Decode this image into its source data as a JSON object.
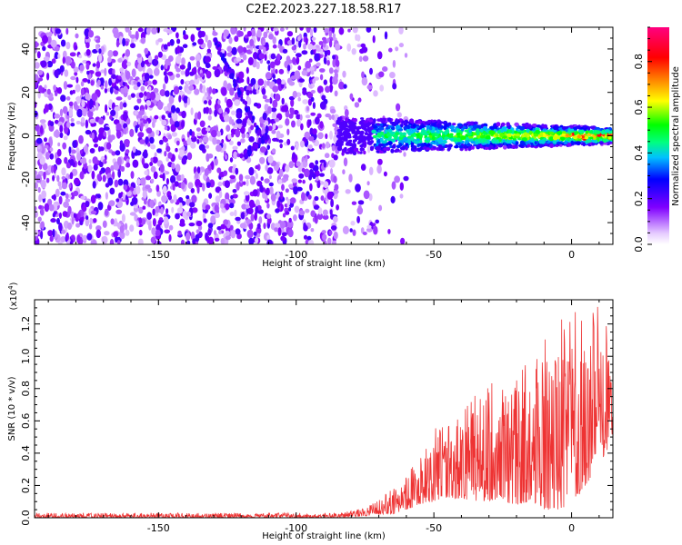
{
  "page_title": "C2E2.2023.227.18.58.R17",
  "chart_data": [
    {
      "type": "heatmap",
      "xlabel": "Height of straight line (km)",
      "ylabel": "Frequency (Hz)",
      "xlim": [
        -195,
        15
      ],
      "ylim": [
        -50,
        50
      ],
      "xticks": [
        -150,
        -100,
        -50,
        0
      ],
      "yticks": [
        -40,
        -20,
        0,
        20,
        40
      ],
      "colorbar": {
        "label": "Normalized spectral amplitude",
        "range": [
          0.0,
          0.95
        ],
        "ticks": [
          0.0,
          0.2,
          0.4,
          0.6,
          0.8
        ],
        "colormap": [
          "#ffffff",
          "#e6ccff",
          "#8000ff",
          "#0000ff",
          "#00c0ff",
          "#00ff80",
          "#00ff00",
          "#ffff00",
          "#ff8000",
          "#ff0000",
          "#ff0080"
        ]
      },
      "signal_band": {
        "x_start": -85,
        "x_end": 15,
        "center_hz": 0,
        "half_width_hz": 6
      },
      "noise_region": {
        "x_start": -195,
        "x_end": -70,
        "max_amplitude": 0.25
      },
      "diagonal_streaks": [
        {
          "x0": -130,
          "y0": 45,
          "x1": -113,
          "y1": 0
        },
        {
          "x0": -120,
          "y0": -10,
          "x1": -110,
          "y1": 0
        }
      ]
    },
    {
      "type": "line",
      "xlabel": "Height of straight line (km)",
      "ylabel": "SNR (10 * v/v)",
      "yscale_label": "(x10",
      "yscale_exp": "4",
      "yscale_close": ")",
      "xlim": [
        -195,
        15
      ],
      "ylim": [
        0.0,
        1.35
      ],
      "xticks": [
        -150,
        -100,
        -50,
        0
      ],
      "yticks": [
        0.0,
        0.2,
        0.4,
        0.6,
        0.8,
        1.0,
        1.2
      ],
      "series": [
        {
          "color": "#ee3333",
          "envelope_x": [
            -195,
            -85,
            -75,
            -70,
            -65,
            -60,
            -55,
            -50,
            -45,
            -40,
            -35,
            -30,
            -25,
            -20,
            -15,
            -10,
            -5,
            0,
            5,
            10,
            15
          ],
          "envelope_max": [
            0.03,
            0.03,
            0.06,
            0.12,
            0.18,
            0.28,
            0.38,
            0.55,
            0.58,
            0.65,
            0.78,
            0.85,
            0.82,
            0.85,
            1.05,
            1.1,
            1.3,
            1.35,
            1.35,
            1.3,
            1.15
          ],
          "envelope_min": [
            0.0,
            0.0,
            0.01,
            0.02,
            0.02,
            0.05,
            0.08,
            0.1,
            0.12,
            0.12,
            0.1,
            0.1,
            0.1,
            0.08,
            0.1,
            0.05,
            0.05,
            0.05,
            0.2,
            0.3,
            0.5
          ]
        }
      ]
    }
  ]
}
